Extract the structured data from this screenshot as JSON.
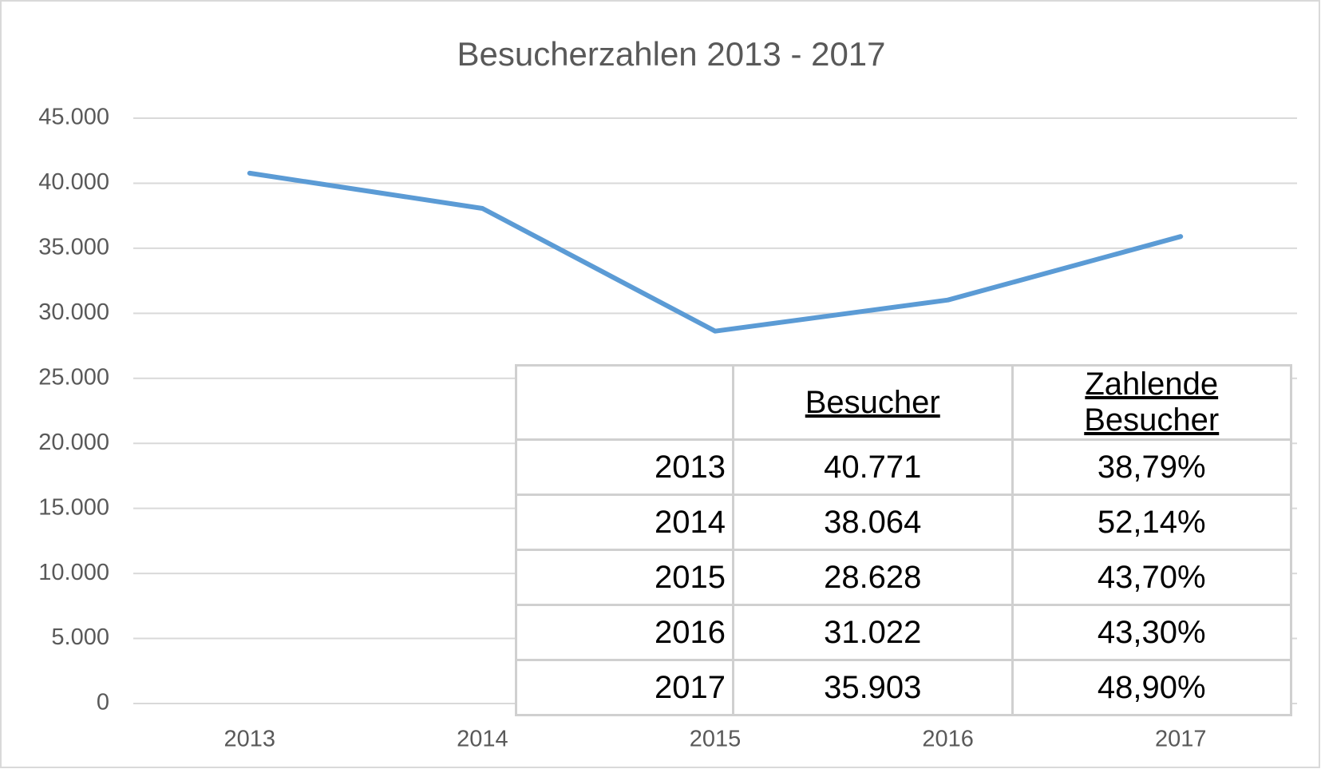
{
  "chart_data": {
    "type": "line",
    "title": "Besucherzahlen 2013 - 2017",
    "categories": [
      "2013",
      "2014",
      "2015",
      "2016",
      "2017"
    ],
    "series": [
      {
        "name": "Besucher",
        "color": "#5b9bd5",
        "values": [
          40771,
          38064,
          28628,
          31022,
          35903
        ]
      }
    ],
    "ylim": [
      0,
      45000
    ],
    "yticks": [
      0,
      {
        "value": 5000,
        "label": "5.000"
      },
      {
        "value": 10000,
        "label": "10.000"
      },
      {
        "value": 15000,
        "label": "15.000"
      },
      {
        "value": 20000,
        "label": "20.000"
      },
      {
        "value": 25000,
        "label": "25.000"
      },
      {
        "value": 30000,
        "label": "30.000"
      },
      {
        "value": 35000,
        "label": "35.000"
      },
      {
        "value": 40000,
        "label": "40.000"
      },
      {
        "value": 45000,
        "label": "45.000"
      }
    ],
    "grid": true
  },
  "table": {
    "columns": [
      "Besucher",
      "Zahlende Besucher"
    ],
    "rows": [
      [
        "2013",
        "40.771",
        "38,79%"
      ],
      [
        "2014",
        "38.064",
        "52,14%"
      ],
      [
        "2015",
        "28.628",
        "43,70%"
      ],
      [
        "2016",
        "31.022",
        "43,30%"
      ],
      [
        "2017",
        "35.903",
        "48,90%"
      ]
    ]
  }
}
